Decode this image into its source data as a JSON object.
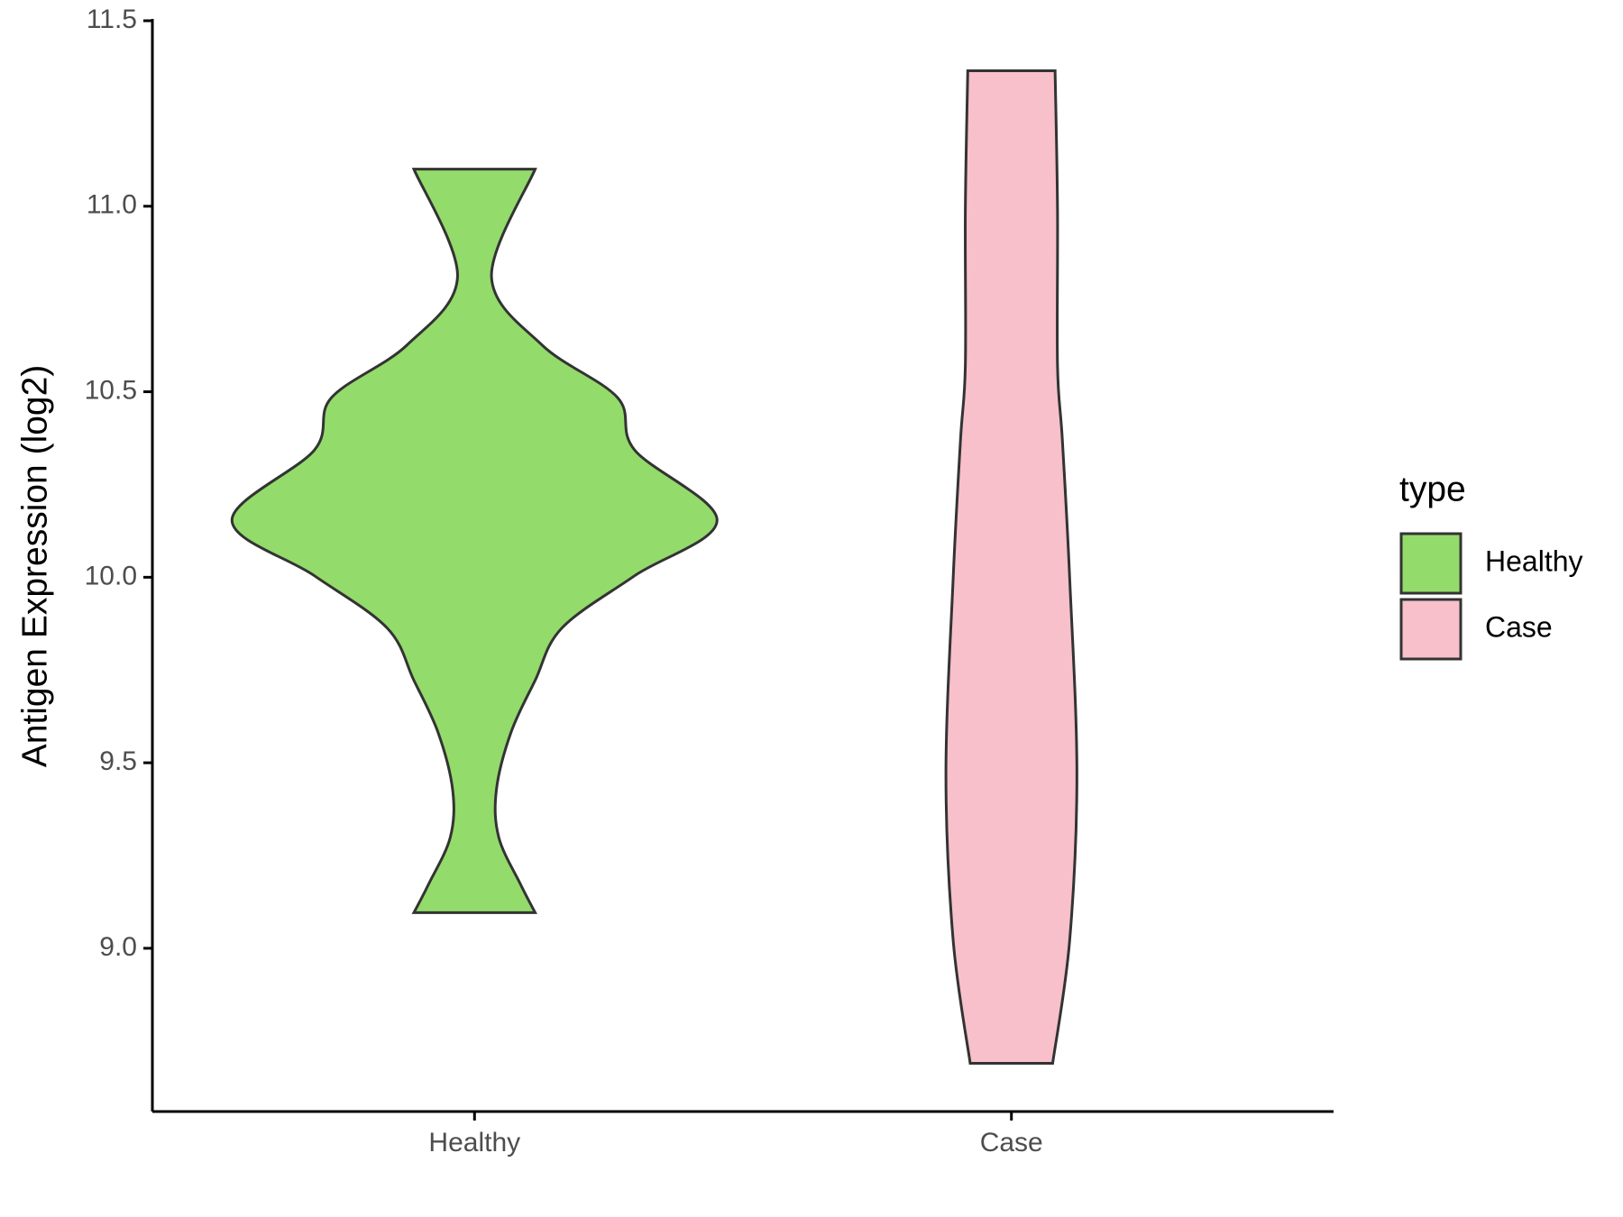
{
  "chart_data": {
    "type": "violin",
    "y_label": "Antigen Expression (log2)",
    "categories": [
      "Healthy",
      "Case"
    ],
    "legend_title": "type",
    "legend_position": "right",
    "series": [
      {
        "name": "Healthy",
        "color": "#93db6b",
        "y": [
          11.1,
          10.81,
          10.625,
          10.484,
          10.343,
          10.154,
          10.004,
          9.863,
          9.722,
          9.581,
          9.426,
          9.299,
          9.172,
          9.096
        ],
        "density": [
          0.25,
          0.07,
          0.28,
          0.59,
          0.66,
          1.0,
          0.66,
          0.36,
          0.25,
          0.15,
          0.09,
          0.1,
          0.19,
          0.25
        ]
      },
      {
        "name": "Case",
        "color": "#f7c0cb",
        "y": [
          11.365,
          10.99,
          10.57,
          10.37,
          10.0,
          9.47,
          9.02,
          8.69
        ],
        "density": [
          0.18,
          0.19,
          0.19,
          0.21,
          0.24,
          0.27,
          0.24,
          0.17
        ]
      }
    ],
    "ylim": [
      8.56,
      11.5
    ],
    "yticks": [
      {
        "value": 9,
        "label": "9.0"
      },
      9.5,
      {
        "value": 10,
        "label": "10.0"
      },
      10.5,
      {
        "value": 11,
        "label": "11.0"
      },
      11.5
    ],
    "grid": false
  }
}
